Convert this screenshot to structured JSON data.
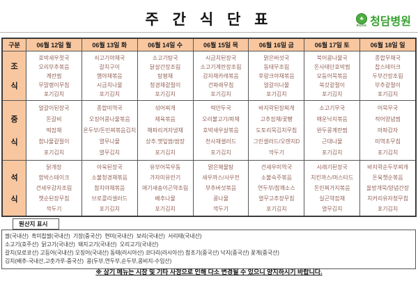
{
  "title": "주 간 식 단 표",
  "hospital": {
    "name": "청담병원",
    "logo_text": "RUSK"
  },
  "table": {
    "corner": "구분",
    "days": [
      "06월 12일 월",
      "06월 13일 화",
      "06월 14일 수",
      "06월 15일 목",
      "06월 16일 금",
      "06월 17일 토",
      "06월 18일 일"
    ],
    "rows": [
      {
        "label": "조식",
        "cells": [
          [
            "호박새우젓국",
            "오리부추볶음",
            "계란찜",
            "무말랭이무침",
            "포기김치"
          ],
          [
            "쇠고기야채국",
            "갈치구이",
            "햄야채볶음",
            "시금치나물",
            "포기김치"
          ],
          [
            "소고기탕국",
            "닭살간장조림",
            "탕평채",
            "청경채겉절이",
            "포기김치"
          ],
          [
            "시금치된장국",
            "소고기계란장조림",
            "감자채카레볶음",
            "건파래무침",
            "포기김치"
          ],
          [
            "맑은버섯국",
            "동태무조림",
            "후랑크야채볶음",
            "얼갈이나물",
            "포기김치"
          ],
          [
            "북어콩나물국",
            "돈사태단호박찜",
            "모둠어묵볶음",
            "쑥갓겉절이",
            "포기김치"
          ],
          [
            "종합무채국",
            "찹스테이크",
            "두부간장조림",
            "부추겉절이",
            "포기김치"
          ]
        ]
      },
      {
        "label": "중식",
        "cells": [
          [
            "얼갈이된장국",
            "돈갈비",
            "떡잡채",
            "참나물겉절이",
            "포기김치"
          ],
          [
            "종합미역국",
            "오징어콩나물볶음",
            "온두부/돈민찌볶음김치",
            "열무나물",
            "열무김치"
          ],
          [
            "섞어찌개",
            "제육볶음",
            "해파리겨자냉채",
            "상추.깻잎쌈/쌈장",
            "포기김치"
          ],
          [
            "떡만두국",
            "오리불고기/파채",
            "호박새우살볶음",
            "천사채샐러드",
            "포기김치"
          ],
          [
            "바지락된장찌개",
            "고추잡채/꽃빵",
            "도토리묵김치무침",
            "그린샐러드/오렌지D",
            "깍두기"
          ],
          [
            "소고기무국",
            "매운낙지볶음",
            "완두콩계란찜",
            "근대나물",
            "포기김치"
          ],
          [
            "어묵무국",
            "적어양념찜",
            "마파감자",
            "미역초무침",
            "포기김치"
          ]
        ]
      },
      {
        "label": "석식",
        "cells": [
          [
            "닭개장",
            "함박스테이크",
            "건새우감자조림",
            "챗순된장무침",
            "깍두기"
          ],
          [
            "아욱된장국",
            "소불청경채볶음",
            "참치야채볶음",
            "브로콜리샐러드",
            "포기김치"
          ],
          [
            "유부어묵우동",
            "가자미유린기",
            "애기새송이곤약조림",
            "배추나물",
            "포기김치"
          ],
          [
            "맑은해물탕",
            "새우까스/사우전",
            "부추버섯볶음",
            "콩나물",
            "깍두기"
          ],
          [
            "건새우미역국",
            "소불숙주볶음",
            "연두부/참깨소스",
            "열무고추장무침",
            "포기김치"
          ],
          [
            "시래기된장국",
            "치킨까스/머스타드",
            "돈민찌가지볶음",
            "실곤약잡채",
            "열무김치"
          ],
          [
            "바지락순두부찌개",
            "돈육챗순볶음",
            "올방개묵/양념간장",
            "치커리유자청무침",
            "포기김치"
          ]
        ]
      }
    ]
  },
  "origin": {
    "header": "원산지 표시",
    "lines": [
      "쌀(국내산)  흑미찹쌀(국내산)  기장(중국산)  현미(국내산)  보리(국내산)  서리태(국내산)",
      "소고기(호주산)  닭고기(국내산)  돼지고기(국내산)  오리고기(국내산)",
      "갈치(모로코산) 고등어(국내산) 오징어(국내산) 동태(러시아산) 코다리(러시아산) 참조기(중국산) 낙지(중국산) 꽃게(중국산)",
      "김치(배추-국내산,고춧가루-중국산)  콩(두부,연두부,순두부,콩비지-수입산)"
    ]
  },
  "footer_note": "※ 상기 메뉴는 시장 및 기타 사정으로 인해 다소 변경될 수 있으니 양지하시기 바랍니다."
}
